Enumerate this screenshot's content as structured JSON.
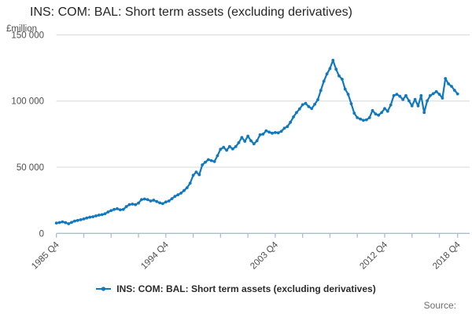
{
  "title": "INS: COM: BAL: Short term assets (excluding derivatives)",
  "legend": {
    "label": "INS: COM: BAL: Short term assets (excluding derivatives)"
  },
  "source": {
    "label": "Source:"
  },
  "colors": {
    "line": "#1178be",
    "grid": "#d8d8d8",
    "axis": "#a8bcd4",
    "tick_text": "#4d4d4d",
    "title_text": "#262626"
  },
  "chart_data": {
    "type": "line",
    "title": "INS: COM: BAL: Short term assets (excluding derivatives)",
    "xlabel": "",
    "ylabel": "£million",
    "ylim": [
      0,
      150000
    ],
    "grid": true,
    "marker": "circle",
    "legend_position": "bottom",
    "frequency": "quarterly",
    "x_start": "1985 Q4",
    "x_end": "2018 Q4",
    "y_ticks": [
      {
        "value": 150000,
        "label": "150 000"
      },
      {
        "value": 100000,
        "label": "100 000"
      },
      {
        "value": 50000,
        "label": "50 000"
      },
      {
        "value": 0,
        "label": "0"
      }
    ],
    "x_tick_quarters": [
      0,
      9,
      18,
      27,
      36,
      45,
      54,
      63,
      72,
      81,
      90,
      99,
      108,
      117,
      126,
      132
    ],
    "x_labeled_ticks": [
      {
        "q": 0,
        "label": "1985 Q4"
      },
      {
        "q": 36,
        "label": "1994 Q4"
      },
      {
        "q": 72,
        "label": "2003 Q4"
      },
      {
        "q": 108,
        "label": "2012 Q4"
      },
      {
        "q": 132,
        "label": "2018 Q4"
      }
    ],
    "series": [
      {
        "name": "INS: COM: BAL: Short term assets (excluding derivatives)",
        "values": [
          7800,
          8200,
          8700,
          8100,
          7300,
          8300,
          9300,
          9800,
          10300,
          10900,
          11600,
          12200,
          12600,
          13200,
          13800,
          14200,
          14800,
          16200,
          17200,
          18100,
          18600,
          17800,
          18100,
          20200,
          21700,
          22100,
          21700,
          22900,
          25500,
          26000,
          25500,
          24500,
          25100,
          24100,
          23100,
          22500,
          23700,
          24500,
          26200,
          28000,
          29200,
          30400,
          32400,
          34500,
          37900,
          43900,
          46300,
          44300,
          51800,
          53800,
          55700,
          55000,
          54300,
          58700,
          63600,
          65000,
          62800,
          65600,
          63800,
          65600,
          68500,
          72500,
          69600,
          73500,
          70000,
          67600,
          70000,
          74500,
          75000,
          77500,
          76500,
          75700,
          76200,
          76000,
          77100,
          79500,
          80700,
          84000,
          88000,
          91300,
          94000,
          97200,
          98200,
          95800,
          94300,
          97500,
          101000,
          108000,
          115000,
          120500,
          124500,
          130800,
          124000,
          119000,
          116500,
          109000,
          105100,
          98000,
          90800,
          87400,
          86400,
          85400,
          85800,
          87400,
          92800,
          90300,
          89300,
          91300,
          94300,
          92300,
          97000,
          104100,
          105100,
          103600,
          101200,
          104100,
          100200,
          96300,
          101200,
          96300,
          104100,
          91300,
          100200,
          104100,
          105600,
          107100,
          105100,
          102200,
          117000,
          113000,
          111100,
          108100,
          105400
        ]
      }
    ]
  }
}
